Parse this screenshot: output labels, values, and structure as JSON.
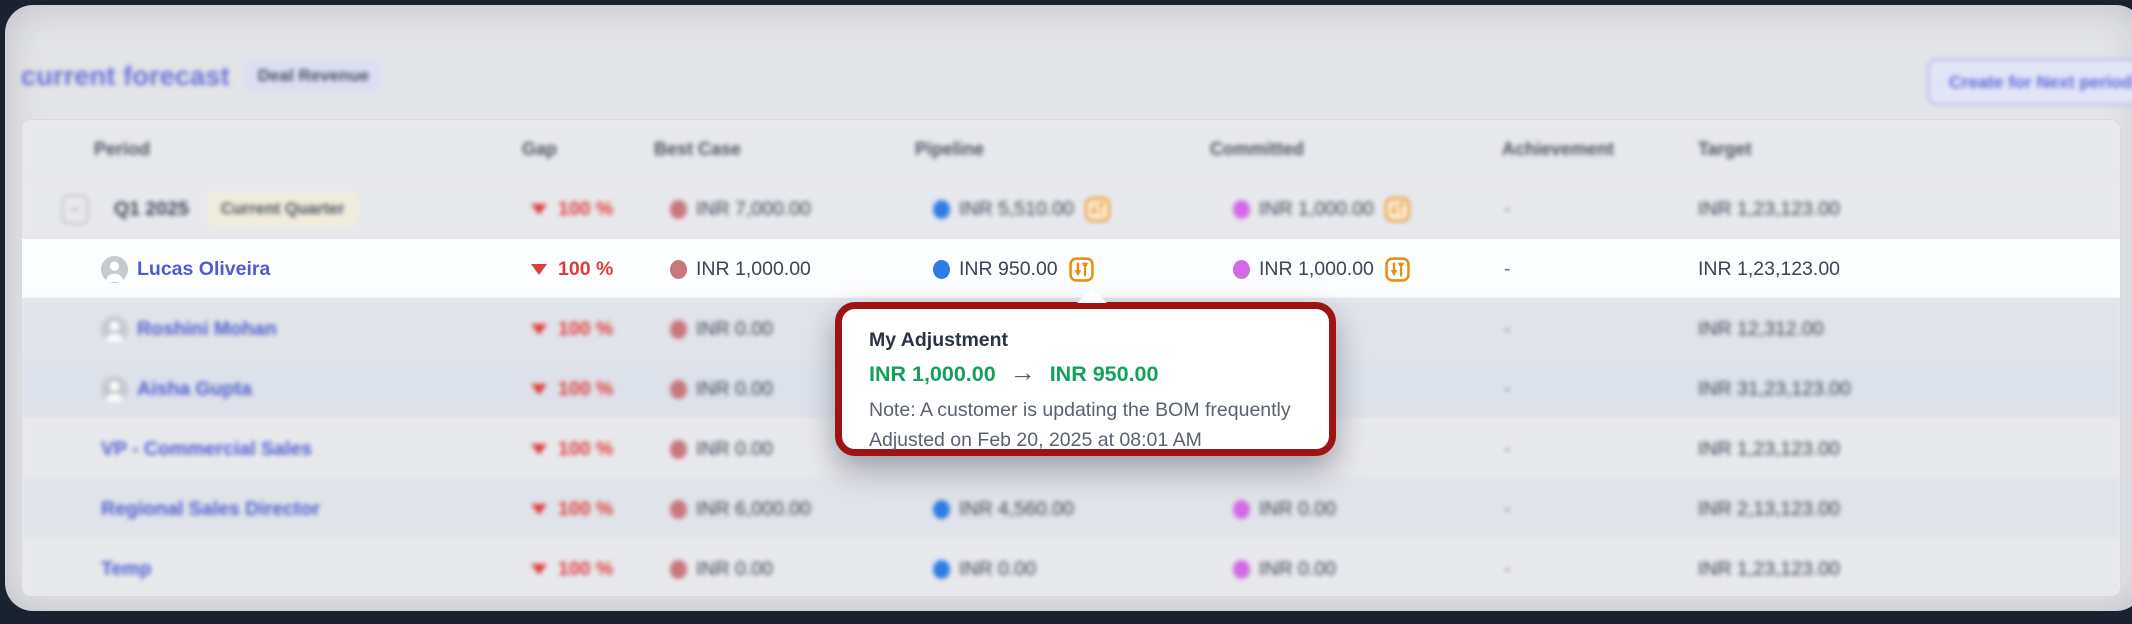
{
  "page": {
    "title": "current forecast",
    "type_badge": "Deal Revenue",
    "create_button": "Create for Next period"
  },
  "table": {
    "columns": [
      "Period",
      "Gap",
      "Best Case",
      "Pipeline",
      "Committed",
      "Achievement",
      "Target"
    ],
    "rows": [
      {
        "period": "Q1 2025",
        "period_badge": "Current Quarter",
        "kind": "quarter",
        "expandable": true,
        "avatar": false,
        "focused": false,
        "shade": "a",
        "gap": "100 %",
        "best_case": "INR 7,000.00",
        "pipeline": "INR 5,510.00",
        "pipeline_adjusted": true,
        "committed": "INR 1,000.00",
        "committed_adjusted": true,
        "achievement": "-",
        "target": "INR 1,23,123.00"
      },
      {
        "period": "Lucas Oliveira",
        "period_badge": null,
        "kind": "user",
        "expandable": false,
        "avatar": true,
        "focused": true,
        "shade": "",
        "gap": "100 %",
        "best_case": "INR 1,000.00",
        "pipeline": "INR 950.00",
        "pipeline_adjusted": true,
        "committed": "INR 1,000.00",
        "committed_adjusted": true,
        "achievement": "-",
        "target": "INR 1,23,123.00"
      },
      {
        "period": "Roshini Mohan",
        "period_badge": null,
        "kind": "user",
        "expandable": false,
        "avatar": true,
        "focused": false,
        "shade": "b",
        "gap": "100 %",
        "best_case": "INR 0.00",
        "pipeline": null,
        "pipeline_adjusted": false,
        "committed": null,
        "committed_adjusted": false,
        "achievement": "-",
        "target": "INR 12,312.00"
      },
      {
        "period": "Aisha Gupta",
        "period_badge": null,
        "kind": "user",
        "expandable": false,
        "avatar": true,
        "focused": false,
        "shade": "c",
        "gap": "100 %",
        "best_case": "INR 0.00",
        "pipeline": null,
        "pipeline_adjusted": false,
        "committed": null,
        "committed_adjusted": false,
        "achievement": "-",
        "target": "INR 31,23,123.00"
      },
      {
        "period": "VP - Commercial Sales",
        "period_badge": null,
        "kind": "role",
        "expandable": false,
        "avatar": false,
        "focused": false,
        "shade": "a",
        "gap": "100 %",
        "best_case": "INR 0.00",
        "pipeline": null,
        "pipeline_adjusted": false,
        "committed": null,
        "committed_adjusted": false,
        "achievement": "-",
        "target": "INR 1,23,123.00"
      },
      {
        "period": "Regional Sales Director",
        "period_badge": null,
        "kind": "role",
        "expandable": false,
        "avatar": false,
        "focused": false,
        "shade": "b",
        "gap": "100 %",
        "best_case": "INR 6,000.00",
        "pipeline": "INR 4,560.00",
        "pipeline_adjusted": false,
        "committed": "INR 0.00",
        "committed_adjusted": false,
        "achievement": "-",
        "target": "INR 2,13,123.00"
      },
      {
        "period": "Temp",
        "period_badge": null,
        "kind": "role",
        "expandable": false,
        "avatar": false,
        "focused": false,
        "shade": "a",
        "gap": "100 %",
        "best_case": "INR 0.00",
        "pipeline": "INR 0.00",
        "pipeline_adjusted": false,
        "committed": "INR 0.00",
        "committed_adjusted": false,
        "achievement": "-",
        "target": "INR 1,23,123.00"
      }
    ]
  },
  "tooltip": {
    "title": "My Adjustment",
    "old_value": "INR 1,000.00",
    "arrow": "→",
    "new_value": "INR 950.00",
    "note": "Note: A customer is updating the BOM frequently",
    "adjusted_on": "Adjusted on Feb 20, 2025 at 08:01 AM"
  },
  "colors": {
    "accent_indigo": "#6a71d8",
    "link_blue": "#4f5cd0",
    "gap_red": "#de3d3d",
    "best_case_dot": "#c9767c",
    "pipeline_dot": "#2e7de4",
    "committed_dot": "#d269e6",
    "adjustment_orange": "#e98d0f",
    "tooltip_ring": "#9e1313",
    "adjustment_green": "#13a15a"
  }
}
